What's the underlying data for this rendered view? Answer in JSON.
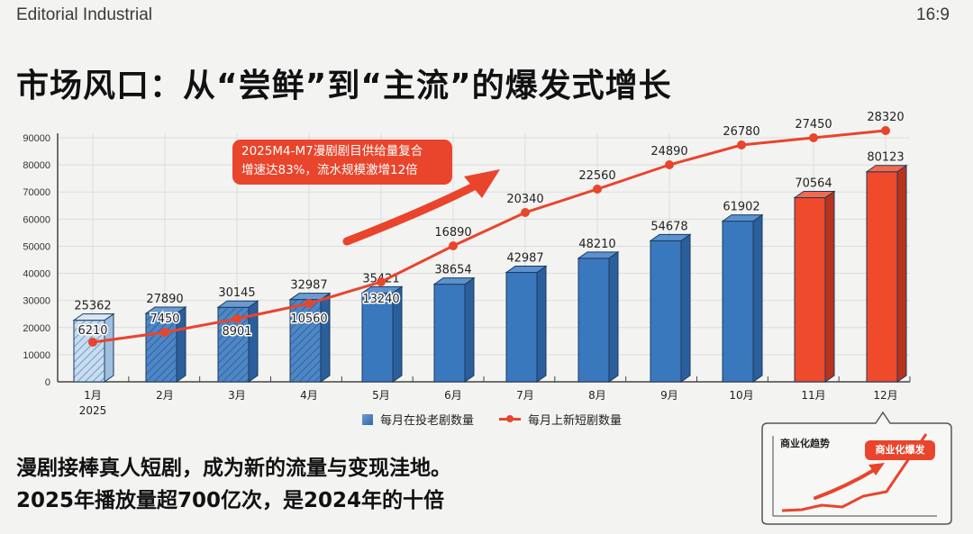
{
  "header": {
    "brand": "Editorial Industrial",
    "aspect_ratio": "16:9",
    "title": "市场风口：从“尝鲜”到“主流”的爆发式增长"
  },
  "callout": {
    "line1": "2025M4-M7漫剧剧目供给量复合",
    "line2": "增速达83%，流水规模激增12倍"
  },
  "legend": {
    "bars": "每月在投老剧数量",
    "line": "每月上新短剧数量"
  },
  "summary": {
    "line1": "漫剧接棒真人短剧，成为新的流量与变现洼地。",
    "line2": "2025年播放量超700亿次，是2024年的十倍"
  },
  "inset": {
    "title": "商业化趋势",
    "badge": "商业化爆发"
  },
  "colors": {
    "bar_blue": "#3a78be",
    "bar_red": "#ef4a2c",
    "line_red": "#e8452c",
    "background": "#f3f3f2"
  },
  "chart_data": {
    "type": "bar",
    "title": "市场风口：从“尝鲜”到“主流”的爆发式增长",
    "xlabel": "",
    "ylabel": "",
    "categories": [
      "1月\n2025",
      "2月",
      "3月",
      "4月",
      "5月",
      "6月",
      "7月",
      "8月",
      "9月",
      "10月",
      "11月",
      "12月"
    ],
    "ylim": [
      0,
      90000
    ],
    "yticks": [
      0,
      10000,
      20000,
      30000,
      40000,
      50000,
      60000,
      70000,
      80000,
      90000
    ],
    "grid": true,
    "legend_position": "bottom",
    "series": [
      {
        "name": "每月在投老剧数量",
        "type": "bar",
        "values": [
          25362,
          27890,
          30145,
          32987,
          35421,
          38654,
          42987,
          48210,
          54678,
          61902,
          70564,
          80123
        ],
        "highlight_last_n": 2
      },
      {
        "name": "每月上新短剧数量",
        "type": "line",
        "values": [
          6210,
          7450,
          8901,
          10560,
          13240,
          16890,
          20340,
          22560,
          24890,
          26780,
          27450,
          28320
        ]
      }
    ],
    "annotations": [
      "2025M4-M7漫剧剧目供给量复合增速达83%，流水规模激增12倍",
      "商业化趋势",
      "商业化爆发"
    ]
  }
}
